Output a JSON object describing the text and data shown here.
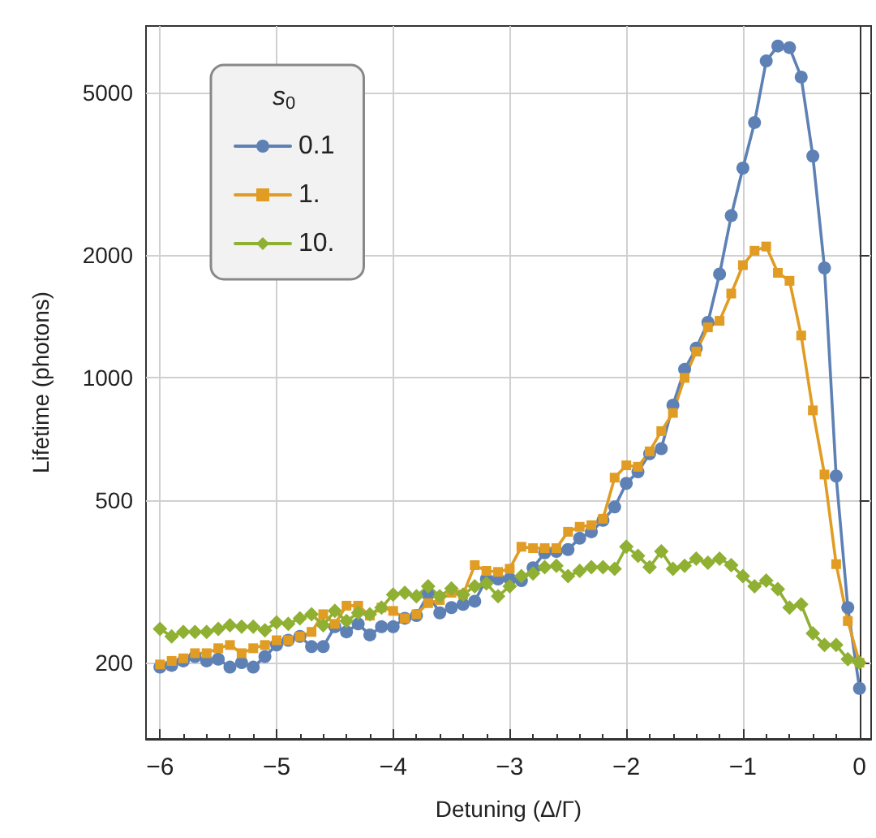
{
  "chart_data": {
    "type": "line",
    "xlabel": "Detuning (Δ/Γ)",
    "ylabel": "Lifetime (photons)",
    "legend_title": "s$_{0}$",
    "x": [
      -6,
      -5.9,
      -5.8,
      -5.7,
      -5.6,
      -5.5,
      -5.4,
      -5.3,
      -5.2,
      -5.1,
      -5,
      -4.9,
      -4.8,
      -4.7,
      -4.6,
      -4.5,
      -4.4,
      -4.3,
      -4.2,
      -4.1,
      -4,
      -3.9,
      -3.8,
      -3.7,
      -3.6,
      -3.5,
      -3.4,
      -3.3,
      -3.2,
      -3.1,
      -3,
      -2.9,
      -2.8,
      -2.7,
      -2.6,
      -2.5,
      -2.4,
      -2.3,
      -2.2,
      -2.1,
      -2,
      -1.9,
      -1.8,
      -1.7,
      -1.6,
      -1.5,
      -1.4,
      -1.3,
      -1.2,
      -1.1,
      -1,
      -0.9,
      -0.8,
      -0.7,
      -0.6,
      -0.5,
      -0.4,
      -0.3,
      -0.2,
      -0.1,
      0
    ],
    "series": [
      {
        "name": "0.1",
        "color": "#5e81b5",
        "marker": "circle",
        "values": [
          195,
          197,
          202,
          207,
          202,
          204,
          195,
          200,
          195,
          207,
          221,
          227,
          232,
          219,
          219,
          245,
          238,
          249,
          234,
          245,
          245,
          257,
          261,
          294,
          265,
          273,
          278,
          283,
          321,
          321,
          321,
          318,
          342,
          372,
          375,
          379,
          404,
          419,
          447,
          482,
          551,
          588,
          651,
          670,
          857,
          1049,
          1183,
          1368,
          1797,
          2500,
          3270,
          4230,
          5990,
          6520,
          6460,
          5470,
          3500,
          1860,
          574,
          273,
          173
        ]
      },
      {
        "name": "1.",
        "color": "#e19c24",
        "marker": "square",
        "values": [
          198,
          202,
          205,
          211,
          211,
          217,
          221,
          211,
          217,
          221,
          227,
          227,
          232,
          238,
          263,
          249,
          276,
          276,
          261,
          273,
          268,
          257,
          263,
          280,
          285,
          297,
          294,
          347,
          336,
          334,
          340,
          385,
          382,
          382,
          382,
          419,
          431,
          435,
          451,
          569,
          610,
          605,
          660,
          740,
          820,
          1000,
          1160,
          1330,
          1380,
          1610,
          1890,
          2050,
          2100,
          1810,
          1730,
          1270,
          832,
          579,
          349,
          253,
          200
        ]
      },
      {
        "name": "10.",
        "color": "#8fb032",
        "marker": "diamond",
        "values": [
          242,
          232,
          238,
          238,
          238,
          242,
          247,
          245,
          245,
          240,
          251,
          249,
          257,
          263,
          247,
          268,
          253,
          265,
          263,
          273,
          294,
          297,
          291,
          308,
          291,
          304,
          294,
          308,
          313,
          291,
          308,
          326,
          331,
          343,
          346,
          326,
          336,
          343,
          343,
          340,
          385,
          366,
          343,
          375,
          340,
          346,
          360,
          352,
          360,
          347,
          326,
          308,
          318,
          303,
          273,
          278,
          236,
          221,
          221,
          204,
          200
        ]
      }
    ],
    "xlim": [
      -6.12,
      0.1
    ],
    "xticks": [
      -6,
      -5,
      -4,
      -3,
      -2,
      -1,
      0
    ],
    "ylim": [
      130,
      7300
    ],
    "yticks": [
      200,
      500,
      1000,
      2000,
      5000
    ],
    "log": "y",
    "grid": true,
    "legend": "top left",
    "line_style": "solid"
  }
}
